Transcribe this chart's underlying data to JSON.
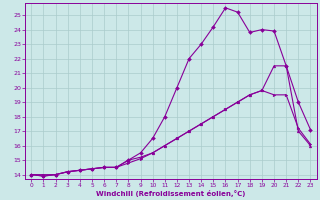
{
  "xlabel": "Windchill (Refroidissement éolien,°C)",
  "xlim": [
    -0.5,
    23.5
  ],
  "ylim": [
    13.7,
    25.8
  ],
  "xticks": [
    0,
    1,
    2,
    3,
    4,
    5,
    6,
    7,
    8,
    9,
    10,
    11,
    12,
    13,
    14,
    15,
    16,
    17,
    18,
    19,
    20,
    21,
    22,
    23
  ],
  "yticks": [
    14,
    15,
    16,
    17,
    18,
    19,
    20,
    21,
    22,
    23,
    24,
    25
  ],
  "background_color": "#cce8e8",
  "grid_color": "#aacccc",
  "line_color": "#880099",
  "line1_x": [
    0,
    1,
    2,
    3,
    4,
    5,
    6,
    7,
    8,
    9,
    10,
    11,
    12,
    13,
    14,
    15,
    16,
    17,
    18,
    19,
    20,
    21,
    22,
    23
  ],
  "line1_y": [
    14,
    14,
    14,
    14.2,
    14.3,
    14.4,
    14.5,
    14.5,
    14.8,
    15.1,
    15.5,
    16.0,
    16.5,
    17.0,
    17.5,
    18.0,
    18.5,
    19.0,
    19.5,
    19.8,
    19.5,
    19.5,
    17.2,
    16.1
  ],
  "line2_x": [
    0,
    1,
    2,
    3,
    4,
    5,
    6,
    7,
    8,
    9,
    10,
    11,
    12,
    13,
    14,
    15,
    16,
    17,
    18,
    19,
    20,
    21,
    22,
    23
  ],
  "line2_y": [
    14,
    13.9,
    14,
    14.2,
    14.3,
    14.4,
    14.5,
    14.5,
    15.0,
    15.5,
    16.5,
    18.0,
    20.0,
    22.0,
    23.0,
    24.2,
    25.5,
    25.2,
    23.8,
    24.0,
    23.9,
    21.5,
    19.0,
    17.1
  ],
  "line3_x": [
    0,
    1,
    2,
    3,
    4,
    5,
    6,
    7,
    8,
    9,
    10,
    11,
    12,
    13,
    14,
    15,
    16,
    17,
    18,
    19,
    20,
    21,
    22,
    23
  ],
  "line3_y": [
    14,
    13.9,
    14,
    14.2,
    14.3,
    14.4,
    14.5,
    14.5,
    15.0,
    15.2,
    15.5,
    16.0,
    16.5,
    17.0,
    17.5,
    18.0,
    18.5,
    19.0,
    19.5,
    19.8,
    21.5,
    21.5,
    17.0,
    16.0
  ]
}
